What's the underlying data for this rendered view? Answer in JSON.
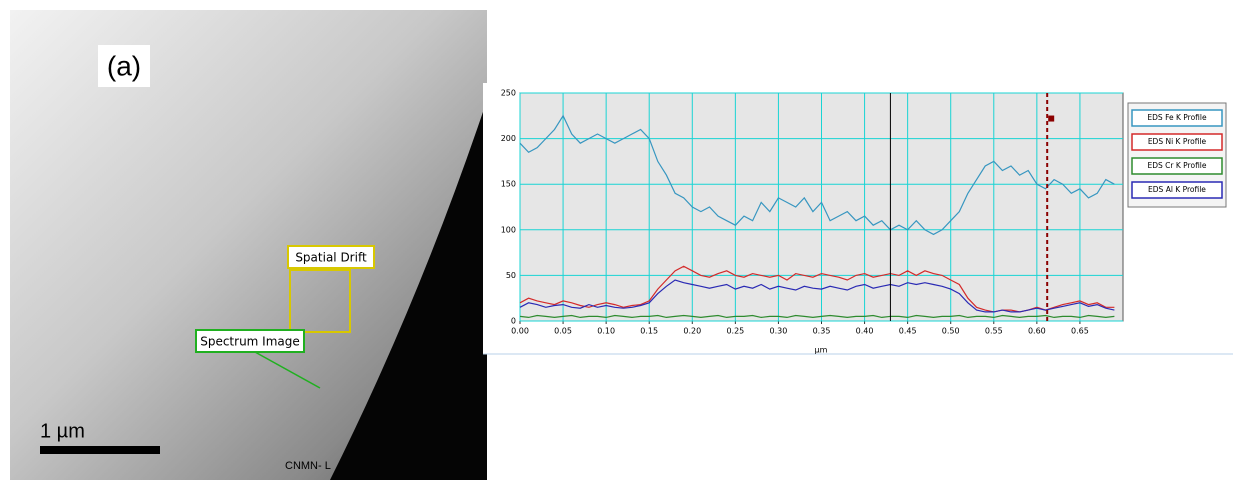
{
  "image": {
    "label": "(a)",
    "spatial_drift": "Spatial Drift",
    "spectrum_image": "Spectrum Image",
    "scale_bar": "1 µm",
    "watermark": "CNMN- L"
  },
  "chart_data": {
    "type": "line",
    "xlabel": "µm",
    "x": [
      0.0,
      0.01,
      0.02,
      0.03,
      0.04,
      0.05,
      0.06,
      0.07,
      0.08,
      0.09,
      0.1,
      0.11,
      0.12,
      0.13,
      0.14,
      0.15,
      0.16,
      0.17,
      0.18,
      0.19,
      0.2,
      0.21,
      0.22,
      0.23,
      0.24,
      0.25,
      0.26,
      0.27,
      0.28,
      0.29,
      0.3,
      0.31,
      0.32,
      0.33,
      0.34,
      0.35,
      0.36,
      0.37,
      0.38,
      0.39,
      0.4,
      0.41,
      0.42,
      0.43,
      0.44,
      0.45,
      0.46,
      0.47,
      0.48,
      0.49,
      0.5,
      0.51,
      0.52,
      0.53,
      0.54,
      0.55,
      0.56,
      0.57,
      0.58,
      0.59,
      0.6,
      0.61,
      0.62,
      0.63,
      0.64,
      0.65,
      0.66,
      0.67,
      0.68,
      0.69
    ],
    "series": [
      {
        "name": "EDS Fe K Profile",
        "color": "#3796c0",
        "values": [
          195,
          185,
          190,
          200,
          210,
          225,
          205,
          195,
          200,
          205,
          200,
          195,
          200,
          205,
          210,
          200,
          175,
          160,
          140,
          135,
          125,
          120,
          125,
          115,
          110,
          105,
          115,
          110,
          130,
          120,
          135,
          130,
          125,
          135,
          120,
          130,
          110,
          115,
          120,
          110,
          115,
          105,
          110,
          100,
          105,
          100,
          110,
          100,
          95,
          100,
          110,
          120,
          140,
          155,
          170,
          175,
          165,
          170,
          160,
          165,
          150,
          145,
          155,
          150,
          140,
          145,
          135,
          140,
          155,
          150
        ]
      },
      {
        "name": "EDS Ni K Profile",
        "color": "#d42a2a",
        "values": [
          20,
          25,
          22,
          20,
          18,
          22,
          20,
          17,
          15,
          18,
          20,
          18,
          15,
          17,
          18,
          22,
          35,
          45,
          55,
          60,
          55,
          50,
          48,
          52,
          55,
          50,
          48,
          52,
          50,
          48,
          50,
          45,
          52,
          50,
          48,
          52,
          50,
          48,
          45,
          50,
          52,
          48,
          50,
          52,
          50,
          55,
          50,
          55,
          52,
          50,
          45,
          40,
          25,
          15,
          12,
          10,
          12,
          12,
          10,
          12,
          15,
          12,
          15,
          18,
          20,
          22,
          18,
          20,
          15,
          15
        ]
      },
      {
        "name": "EDS Cr K Profile",
        "color": "#2e8b2e",
        "values": [
          5,
          4,
          6,
          5,
          4,
          5,
          6,
          4,
          5,
          5,
          4,
          6,
          5,
          4,
          5,
          5,
          6,
          4,
          5,
          6,
          5,
          4,
          5,
          6,
          4,
          5,
          5,
          6,
          4,
          5,
          5,
          4,
          6,
          5,
          4,
          5,
          6,
          5,
          4,
          5,
          5,
          6,
          4,
          5,
          5,
          4,
          6,
          5,
          4,
          5,
          5,
          6,
          4,
          5,
          5,
          4,
          6,
          5,
          4,
          5,
          5,
          6,
          4,
          5,
          5,
          4,
          6,
          5,
          4,
          5
        ]
      },
      {
        "name": "EDS Al K Profile",
        "color": "#2a2ab4",
        "values": [
          15,
          20,
          18,
          15,
          17,
          18,
          15,
          14,
          18,
          15,
          17,
          15,
          14,
          15,
          17,
          20,
          30,
          38,
          45,
          42,
          40,
          38,
          36,
          38,
          40,
          35,
          38,
          36,
          40,
          35,
          38,
          36,
          34,
          38,
          36,
          35,
          38,
          36,
          34,
          38,
          40,
          36,
          38,
          40,
          38,
          42,
          40,
          42,
          40,
          38,
          35,
          30,
          20,
          12,
          10,
          10,
          12,
          10,
          10,
          12,
          14,
          12,
          14,
          16,
          18,
          20,
          16,
          18,
          14,
          12
        ]
      }
    ],
    "xlim": [
      0,
      0.7
    ],
    "ylim": [
      0,
      250
    ],
    "xticks": [
      {
        "value": 0,
        "label": "0.00"
      },
      {
        "value": 0.05,
        "label": "0.05"
      },
      {
        "value": 0.1,
        "label": "0.10"
      },
      {
        "value": 0.15,
        "label": "0.15"
      },
      {
        "value": 0.2,
        "label": "0.20"
      },
      {
        "value": 0.25,
        "label": "0.25"
      },
      {
        "value": 0.3,
        "label": "0.30"
      },
      {
        "value": 0.35,
        "label": "0.35"
      },
      {
        "value": 0.4,
        "label": "0.40"
      },
      {
        "value": 0.45,
        "label": "0.45"
      },
      {
        "value": 0.5,
        "label": "0.50"
      },
      {
        "value": 0.55,
        "label": "0.55"
      },
      {
        "value": 0.6,
        "label": "0.60"
      },
      {
        "value": 0.65,
        "label": "0.65"
      }
    ],
    "yticks": [
      0,
      50,
      100,
      150,
      200,
      250
    ],
    "grid": true,
    "cursor_x": 0.43,
    "marker": {
      "x": 0.612,
      "y": 222
    }
  }
}
